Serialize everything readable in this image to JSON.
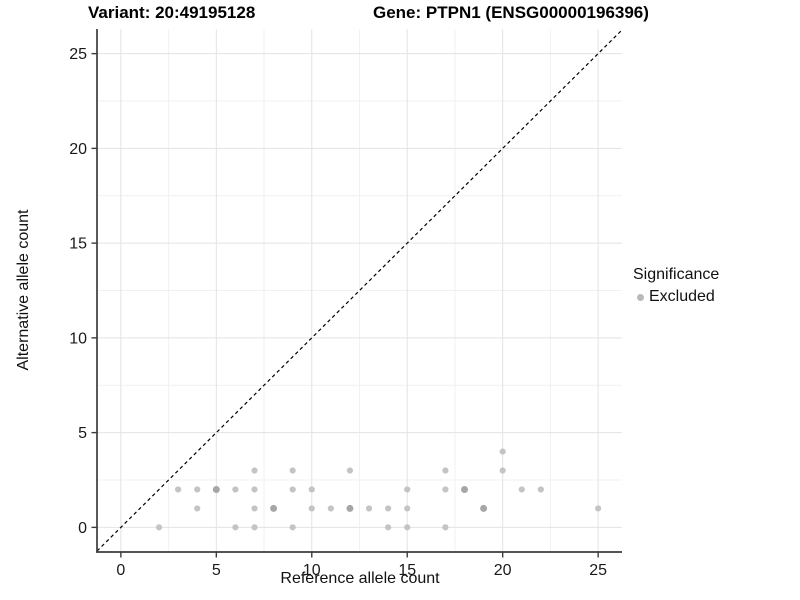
{
  "chart_data": {
    "type": "scatter",
    "title_left": "Variant: 20:49195128",
    "title_right": "Gene: PTPN1 (ENSG00000196396)",
    "xlabel": "Reference allele count",
    "ylabel": "Alternative allele count",
    "xticks": [
      0,
      5,
      10,
      15,
      20,
      25
    ],
    "yticks": [
      0,
      5,
      10,
      15,
      20,
      25
    ],
    "xlim": [
      -1.25,
      26.25
    ],
    "ylim": [
      -1.3,
      26.3
    ],
    "minor_ticks": [
      2.5,
      7.5,
      12.5,
      17.5,
      22.5
    ],
    "grid": "major+minor",
    "identity_line": {
      "slope": 1,
      "intercept": 0,
      "style": "dashed",
      "color": "#000000"
    },
    "legend": {
      "title": "Significance",
      "position": "right",
      "items": [
        {
          "label": "Excluded",
          "color": "#bdbdbd"
        }
      ]
    },
    "series": [
      {
        "name": "Excluded",
        "points": [
          {
            "x": 2,
            "y": 0
          },
          {
            "x": 6,
            "y": 0
          },
          {
            "x": 7,
            "y": 0
          },
          {
            "x": 9,
            "y": 0
          },
          {
            "x": 14,
            "y": 0
          },
          {
            "x": 15,
            "y": 0
          },
          {
            "x": 17,
            "y": 0
          },
          {
            "x": 4,
            "y": 1
          },
          {
            "x": 7,
            "y": 1
          },
          {
            "x": 8,
            "y": 1,
            "dark": true
          },
          {
            "x": 10,
            "y": 1
          },
          {
            "x": 11,
            "y": 1
          },
          {
            "x": 12,
            "y": 1,
            "dark": true
          },
          {
            "x": 13,
            "y": 1
          },
          {
            "x": 14,
            "y": 1
          },
          {
            "x": 15,
            "y": 1
          },
          {
            "x": 19,
            "y": 1,
            "dark": true
          },
          {
            "x": 25,
            "y": 1
          },
          {
            "x": 3,
            "y": 2
          },
          {
            "x": 4,
            "y": 2
          },
          {
            "x": 5,
            "y": 2,
            "dark": true
          },
          {
            "x": 6,
            "y": 2
          },
          {
            "x": 7,
            "y": 2
          },
          {
            "x": 9,
            "y": 2
          },
          {
            "x": 10,
            "y": 2
          },
          {
            "x": 15,
            "y": 2
          },
          {
            "x": 17,
            "y": 2
          },
          {
            "x": 18,
            "y": 2,
            "dark": true
          },
          {
            "x": 21,
            "y": 2
          },
          {
            "x": 22,
            "y": 2
          },
          {
            "x": 7,
            "y": 3
          },
          {
            "x": 9,
            "y": 3
          },
          {
            "x": 12,
            "y": 3
          },
          {
            "x": 17,
            "y": 3
          },
          {
            "x": 20,
            "y": 3
          },
          {
            "x": 20,
            "y": 4
          }
        ]
      }
    ],
    "colors": {
      "point": "#c4c4c4",
      "point_dark": "#a6a6a6",
      "grid_major": "#e3e3e3",
      "grid_minor": "#f1f1f1",
      "axis_line": "#3c3c3c",
      "tick_text": "#1a1a1a"
    }
  }
}
